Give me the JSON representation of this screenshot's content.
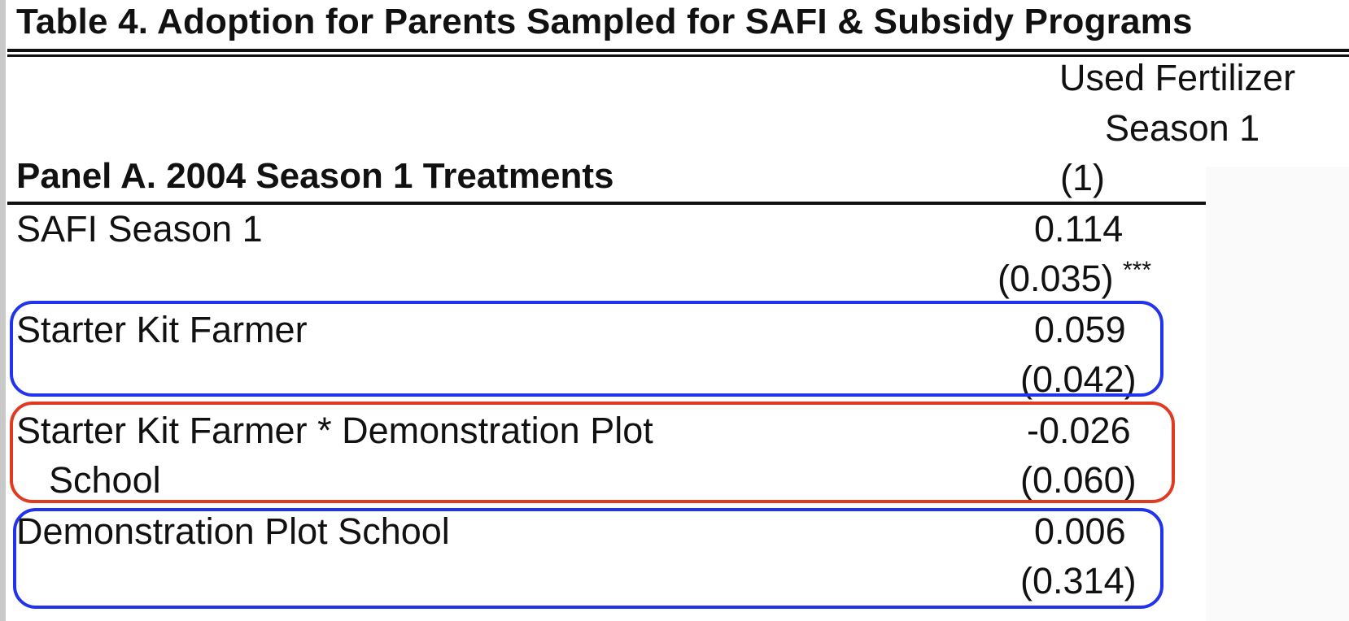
{
  "table": {
    "title": "Table 4. Adoption for Parents Sampled for SAFI & Subsidy Programs",
    "column": {
      "line1": "Used Fertilizer",
      "line2": "Season 1",
      "number": "(1)"
    },
    "panel_title": "Panel A. 2004 Season 1 Treatments",
    "rows": [
      {
        "label": "SAFI Season 1",
        "coef": "0.114",
        "se": "(0.035)",
        "stars": "***"
      },
      {
        "label": "Starter Kit Farmer",
        "coef": "0.059",
        "se": "(0.042)",
        "stars": ""
      },
      {
        "label_line1": "Starter Kit Farmer * Demonstration Plot",
        "label_line2": "School",
        "coef": "-0.026",
        "se": "(0.060)",
        "stars": ""
      },
      {
        "label": "Demonstration Plot School",
        "coef": "0.006",
        "se": "(0.314)",
        "stars": ""
      }
    ]
  },
  "highlights": [
    {
      "row": "Starter Kit Farmer",
      "color": "#2233ee"
    },
    {
      "row": "Starter Kit Farmer * Demonstration Plot School",
      "color": "#e03a20"
    },
    {
      "row": "Demonstration Plot School",
      "color": "#2233ee"
    }
  ]
}
